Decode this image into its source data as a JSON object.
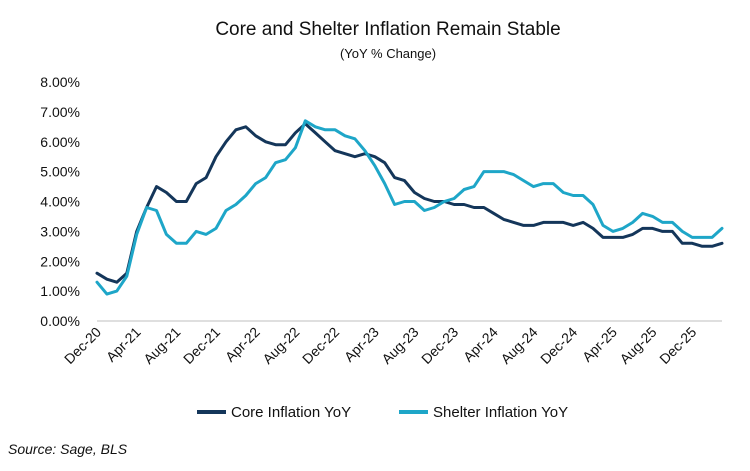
{
  "chart_data": {
    "type": "line",
    "title": "Core and Shelter Inflation Remain Stable",
    "subtitle": "(YoY % Change)",
    "x_tick_labels": [
      "Dec-20",
      "Apr-21",
      "Aug-21",
      "Dec-21",
      "Apr-22",
      "Aug-22",
      "Dec-22",
      "Apr-23",
      "Aug-23",
      "Dec-23",
      "Apr-24",
      "Aug-24",
      "Dec-24",
      "Apr-25",
      "Aug-25",
      "Dec-25"
    ],
    "y_tick_labels": [
      "0.00%",
      "1.00%",
      "2.00%",
      "3.00%",
      "4.00%",
      "5.00%",
      "6.00%",
      "7.00%",
      "8.00%"
    ],
    "ylim": [
      0,
      8
    ],
    "grid": false,
    "legend_position": "bottom",
    "series": [
      {
        "name": "Core Inflation YoY",
        "color": "#14365a",
        "values": [
          1.6,
          1.4,
          1.3,
          1.6,
          3.0,
          3.8,
          4.5,
          4.3,
          4.0,
          4.0,
          4.6,
          4.8,
          5.5,
          6.0,
          6.4,
          6.5,
          6.2,
          6.0,
          5.9,
          5.9,
          6.3,
          6.6,
          6.3,
          6.0,
          5.7,
          5.6,
          5.5,
          5.6,
          5.5,
          5.3,
          4.8,
          4.7,
          4.3,
          4.1,
          4.0,
          4.0,
          3.9,
          3.9,
          3.8,
          3.8,
          3.6,
          3.4,
          3.3,
          3.2,
          3.2,
          3.3,
          3.3,
          3.3,
          3.2,
          3.3,
          3.1,
          2.8,
          2.8,
          2.8,
          2.9,
          3.1,
          3.1,
          3.0,
          3.0,
          2.6,
          2.6,
          2.5,
          2.5,
          2.6
        ]
      },
      {
        "name": "Shelter Inflation YoY",
        "color": "#1ea6c8",
        "values": [
          1.3,
          0.9,
          1.0,
          1.5,
          2.9,
          3.8,
          3.7,
          2.9,
          2.6,
          2.6,
          3.0,
          2.9,
          3.1,
          3.7,
          3.9,
          4.2,
          4.6,
          4.8,
          5.3,
          5.4,
          5.8,
          6.7,
          6.5,
          6.4,
          6.4,
          6.2,
          6.1,
          5.7,
          5.2,
          4.6,
          3.9,
          4.0,
          4.0,
          3.7,
          3.8,
          4.0,
          4.1,
          4.4,
          4.5,
          5.0,
          5.0,
          5.0,
          4.9,
          4.7,
          4.5,
          4.6,
          4.6,
          4.3,
          4.2,
          4.2,
          3.9,
          3.2,
          3.0,
          3.1,
          3.3,
          3.6,
          3.5,
          3.3,
          3.3,
          3.0,
          2.8,
          2.8,
          2.8,
          3.1
        ]
      }
    ]
  },
  "source": "Source: Sage, BLS"
}
